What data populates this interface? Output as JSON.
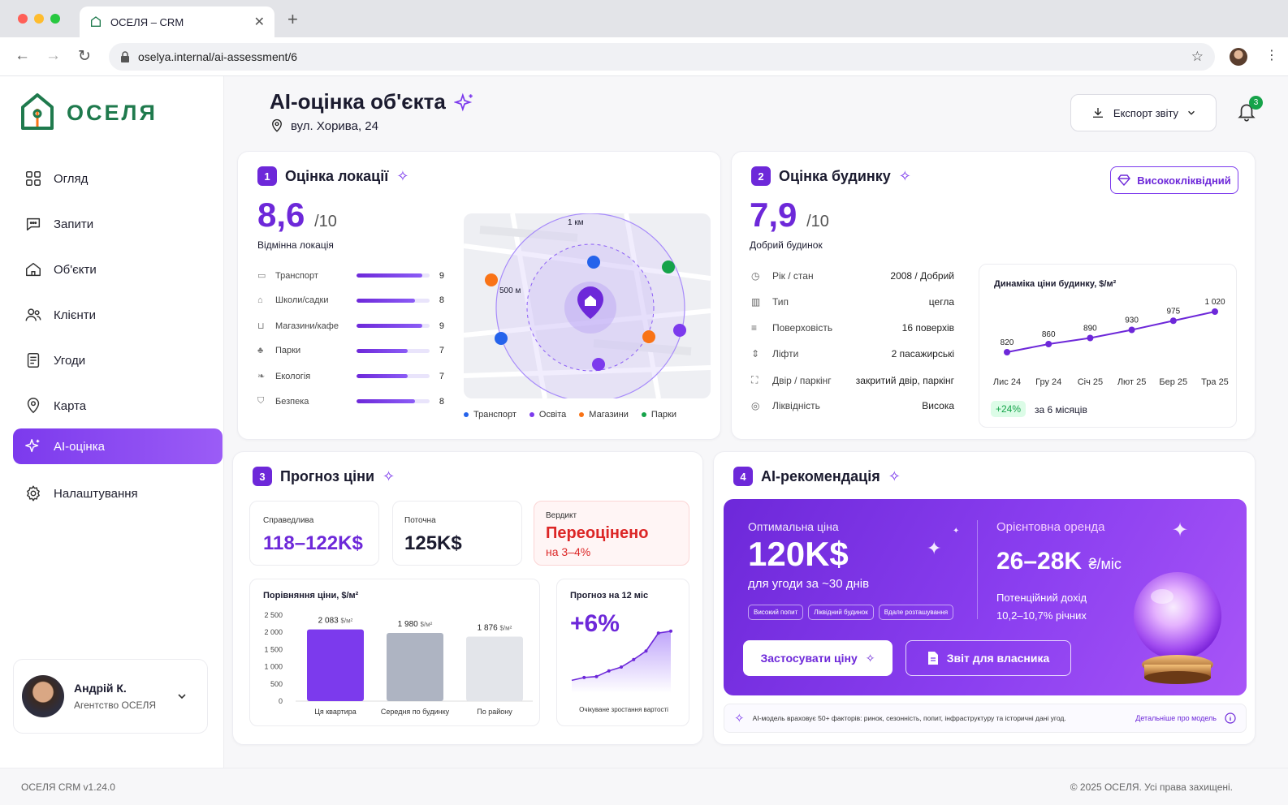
{
  "browser": {
    "tab_title": "ОСЕЛЯ – CRM",
    "url": "oselya.internal/ai-assessment/6"
  },
  "brand": {
    "name": "ОСЕЛЯ",
    "accent": "#6d28d9",
    "green": "#1f7a4d"
  },
  "sidebar": {
    "items": [
      {
        "label": "Огляд",
        "icon": "grid-icon"
      },
      {
        "label": "Запити",
        "icon": "chat-icon"
      },
      {
        "label": "Об'єкти",
        "icon": "home-icon"
      },
      {
        "label": "Клієнти",
        "icon": "users-icon"
      },
      {
        "label": "Угоди",
        "icon": "document-icon"
      },
      {
        "label": "Карта",
        "icon": "map-pin-icon"
      },
      {
        "label": "AI-оцінка",
        "icon": "sparkle-icon"
      },
      {
        "label": "Налаштування",
        "icon": "gear-icon"
      }
    ],
    "active_index": 6,
    "user": {
      "name": "Андрій К.",
      "agency": "Агентство ОСЕЛЯ"
    }
  },
  "header": {
    "title": "AI-оцінка об'єкта",
    "address": "вул. Хорива, 24",
    "export_label": "Експорт звіту",
    "notifications": "3"
  },
  "location": {
    "number": "1",
    "title": "Оцінка локації",
    "score": "8,6",
    "score_max": "/10",
    "verdict": "Відмінна локація",
    "metrics": [
      {
        "label": "Транспорт",
        "value": "9",
        "fraction": 0.9
      },
      {
        "label": "Школи/садки",
        "value": "8",
        "fraction": 0.8
      },
      {
        "label": "Магазини/кафе",
        "value": "9",
        "fraction": 0.9
      },
      {
        "label": "Парки",
        "value": "7",
        "fraction": 0.7
      },
      {
        "label": "Екологія",
        "value": "7",
        "fraction": 0.7
      },
      {
        "label": "Безпека",
        "value": "8",
        "fraction": 0.8
      }
    ],
    "map": {
      "ring_outer": "1 км",
      "ring_inner": "500 м"
    },
    "legend": [
      {
        "label": "Транспорт",
        "color": "#2563eb"
      },
      {
        "label": "Освіта",
        "color": "#7c3aed"
      },
      {
        "label": "Магазини",
        "color": "#f97316"
      },
      {
        "label": "Парки",
        "color": "#16a34a"
      }
    ]
  },
  "building": {
    "number": "2",
    "title": "Оцінка будинку",
    "badge": "Висококліквідний",
    "score": "7,9",
    "score_max": "/10",
    "verdict": "Добрий будинок",
    "props": [
      {
        "label": "Рік / стан",
        "value": "2008 / Добрий"
      },
      {
        "label": "Тип",
        "value": "цегла"
      },
      {
        "label": "Поверховість",
        "value": "16 поверхів"
      },
      {
        "label": "Ліфти",
        "value": "2 пасажирські"
      },
      {
        "label": "Двір / паркінг",
        "value": "закритий двір, паркінг"
      },
      {
        "label": "Ліквідність",
        "value": "Висока"
      }
    ],
    "growth": "+24%",
    "growth_note": "за 6 місяців"
  },
  "forecast": {
    "number": "3",
    "title": "Прогноз ціни",
    "fair_label": "Справедлива",
    "fair_value": "118–122K$",
    "current_label": "Поточна",
    "current_value": "125K$",
    "verdict_label": "Вердикт",
    "verdict_value": "Переоцінено",
    "verdict_sub": "на 3–4%",
    "twelve_title": "Прогноз на 12 міс",
    "twelve_value": "+6%",
    "twelve_note": "Очікуване зростання вартості"
  },
  "recommendation": {
    "number": "4",
    "title": "AI-рекомендація",
    "opt_label": "Оптимальна ціна",
    "opt_value": "120K$",
    "opt_note": "для угоди за ~30 днів",
    "chips": [
      "Високий попит",
      "Ліквідний будинок",
      "Вдале розташування"
    ],
    "rent_label": "Орієнтовна оренда",
    "rent_value": "26–28K",
    "rent_unit": "₴/міс",
    "income_label": "Потенційний дохід",
    "income_value": "10,2–10,7% річних",
    "apply_label": "Застосувати ціну",
    "report_label": "Звіт для власника",
    "note": "AI-модель враховує 50+ факторів: ринок, сезонність, попит, інфраструктуру та історичні дані угод.",
    "more": "Детальніше про модель"
  },
  "footer": {
    "version": "ОСЕЛЯ CRM v1.24.0",
    "copyright": "© 2025 ОСЕЛЯ. Усі права захищені."
  },
  "chart_data": [
    {
      "type": "line",
      "title": "Динаміка ціни будинку, $/м²",
      "categories": [
        "Лис 24",
        "Гру 24",
        "Січ 25",
        "Лют 25",
        "Бер 25",
        "Тра 25"
      ],
      "values": [
        820,
        860,
        890,
        930,
        975,
        1020
      ],
      "value_labels": [
        "820",
        "860",
        "890",
        "930",
        "975",
        "1 020"
      ],
      "ylim": [
        780,
        1060
      ]
    },
    {
      "type": "bar",
      "title": "Порівняння ціни, $/м²",
      "categories": [
        "Ця квартира",
        "Середня по будинку",
        "По району"
      ],
      "values": [
        2083,
        1980,
        1876
      ],
      "value_labels": [
        "2 083",
        "1 980",
        "1 876"
      ],
      "unit": "$/м²",
      "yticks": [
        "2 500",
        "2 000",
        "1 500",
        "1 000",
        "500",
        "0"
      ],
      "ylim": [
        0,
        2500
      ],
      "colors": [
        "#7c3aed",
        "#aeb4c2",
        "#e3e5ea"
      ]
    },
    {
      "type": "area",
      "title": "Прогноз на 12 міс",
      "values": [
        10,
        13,
        14,
        20,
        24,
        32,
        41,
        60,
        62
      ]
    }
  ]
}
